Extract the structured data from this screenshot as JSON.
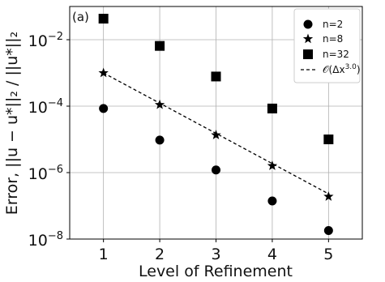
{
  "chart_data": {
    "type": "scatter",
    "panel_label": "(a)",
    "xlabel": "Level of Refinement",
    "ylabel": "Error, ||u − u*||₂ / ||u*||₂",
    "x_scale": "linear",
    "y_scale": "log",
    "xlim": [
      0.4,
      5.6
    ],
    "ylim": [
      1e-08,
      0.1
    ],
    "x_ticks": [
      1,
      2,
      3,
      4,
      5
    ],
    "x_tick_labels": [
      "1",
      "2",
      "3",
      "4",
      "5"
    ],
    "y_tick_labels": [
      {
        "value": 1e-08,
        "base": "10",
        "exp": "−8"
      },
      {
        "value": 1e-06,
        "base": "10",
        "exp": "−6"
      },
      {
        "value": 0.0001,
        "base": "10",
        "exp": "−4"
      },
      {
        "value": 0.01,
        "base": "10",
        "exp": "−2"
      }
    ],
    "grid": true,
    "legend_position": "top-right",
    "series": [
      {
        "name": "n=2",
        "marker": "circle",
        "x": [
          1,
          2,
          3,
          4,
          5
        ],
        "y": [
          8.5e-05,
          9.5e-06,
          1.2e-06,
          1.4e-07,
          1.8e-08
        ]
      },
      {
        "name": "n=8",
        "marker": "star",
        "x": [
          1,
          2,
          3,
          4,
          5
        ],
        "y": [
          0.001,
          0.00011,
          1.35e-05,
          1.6e-06,
          1.9e-07
        ]
      },
      {
        "name": "n=32",
        "marker": "square",
        "x": [
          1,
          2,
          3,
          4,
          5
        ],
        "y": [
          0.043,
          0.0065,
          0.00078,
          8.5e-05,
          1e-05
        ]
      },
      {
        "name_prefix": "𝒪(Δx",
        "name_exp": "3.0",
        "name_suffix": ")",
        "line": "dashed",
        "x": [
          1,
          5
        ],
        "y": [
          0.001,
          2.3e-07
        ]
      }
    ]
  }
}
